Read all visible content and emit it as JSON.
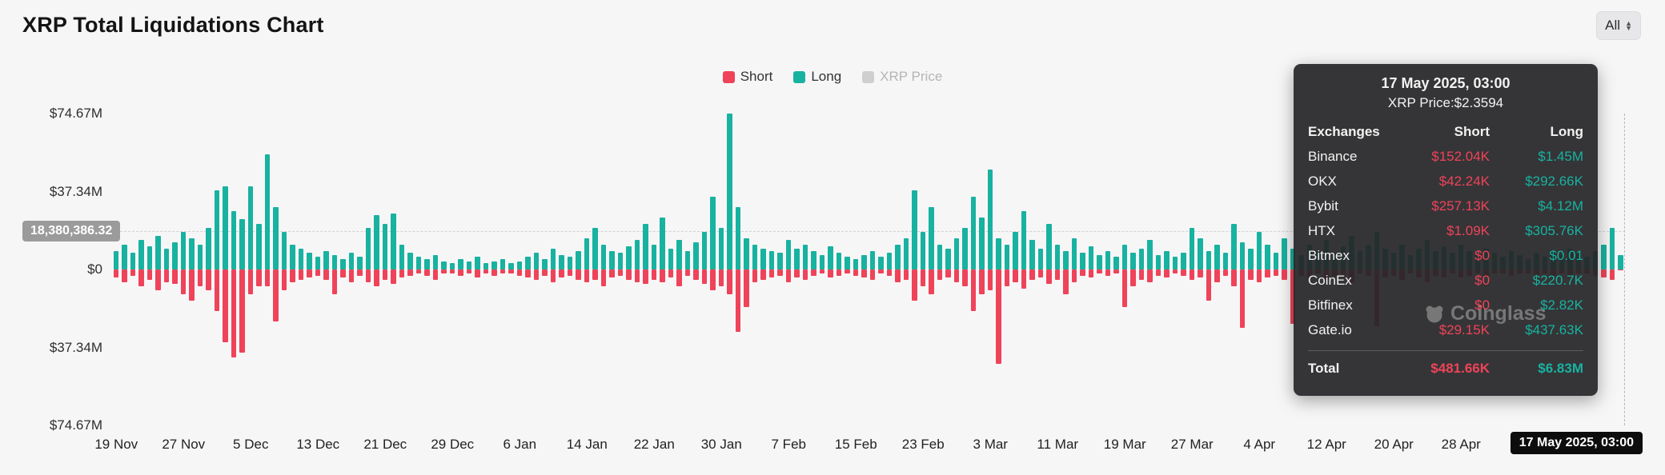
{
  "page": {
    "title": "XRP Total Liquidations Chart"
  },
  "controls": {
    "range_selector_label": "All"
  },
  "legend": [
    {
      "label": "Short",
      "color": "#ef4359",
      "active": true
    },
    {
      "label": "Long",
      "color": "#18b2a0",
      "active": true
    },
    {
      "label": "XRP Price",
      "color": "#cfcfcf",
      "active": false,
      "text_color": "#b5b5b5"
    }
  ],
  "axis": {
    "y_labels": [
      "$74.67M",
      "$37.34M",
      "$0",
      "$37.34M",
      "$74.67M"
    ],
    "crosshair_value": "18,380,386.32"
  },
  "tooltip": {
    "date": "17 May 2025, 03:00",
    "price_line": "XRP Price:$2.3594",
    "header": {
      "exchanges": "Exchanges",
      "short": "Short",
      "long": "Long"
    },
    "rows": [
      {
        "exchange": "Binance",
        "short": "$152.04K",
        "long": "$1.45M"
      },
      {
        "exchange": "OKX",
        "short": "$42.24K",
        "long": "$292.66K"
      },
      {
        "exchange": "Bybit",
        "short": "$257.13K",
        "long": "$4.12M"
      },
      {
        "exchange": "HTX",
        "short": "$1.09K",
        "long": "$305.76K"
      },
      {
        "exchange": "Bitmex",
        "short": "$0",
        "long": "$0.01"
      },
      {
        "exchange": "CoinEx",
        "short": "$0",
        "long": "$220.7K"
      },
      {
        "exchange": "Bitfinex",
        "short": "$0",
        "long": "$2.82K"
      },
      {
        "exchange": "Gate.io",
        "short": "$29.15K",
        "long": "$437.63K"
      }
    ],
    "total": {
      "label": "Total",
      "short": "$481.66K",
      "long": "$6.83M"
    }
  },
  "hover_date_badge": "17 May 2025, 03:00",
  "watermark": "Coinglass",
  "chart_data": {
    "type": "bar",
    "title": "XRP Total Liquidations Chart",
    "units": "USD millions",
    "x_start": "2024-11-19",
    "x_end": "2025-05-17",
    "interval": "daily",
    "ylim": [
      -74.67,
      74.67
    ],
    "grid": false,
    "legend_position": "top-center",
    "x_tick_every": 8,
    "x_tick_labels": [
      "19 Nov",
      "27 Nov",
      "5 Dec",
      "13 Dec",
      "21 Dec",
      "29 Dec",
      "6 Jan",
      "14 Jan",
      "22 Jan",
      "30 Jan",
      "7 Feb",
      "15 Feb",
      "23 Feb",
      "3 Mar",
      "11 Mar",
      "19 Mar",
      "27 Mar",
      "4 Apr",
      "12 Apr",
      "20 Apr",
      "28 Apr"
    ],
    "series": [
      {
        "name": "Long",
        "color": "#18b2a0",
        "values": [
          9,
          12,
          8,
          14,
          11,
          16,
          10,
          13,
          18,
          15,
          12,
          20,
          38,
          40,
          28,
          24,
          40,
          22,
          55,
          30,
          18,
          12,
          10,
          8,
          6,
          9,
          7,
          5,
          8,
          6,
          20,
          26,
          22,
          27,
          12,
          8,
          6,
          5,
          7,
          4,
          3,
          5,
          4,
          6,
          3,
          4,
          5,
          3,
          4,
          6,
          8,
          5,
          10,
          7,
          6,
          9,
          15,
          20,
          12,
          9,
          8,
          11,
          14,
          22,
          12,
          25,
          10,
          14,
          9,
          13,
          18,
          35,
          20,
          74.7,
          30,
          15,
          12,
          10,
          9,
          8,
          14,
          10,
          12,
          9,
          7,
          11,
          8,
          6,
          5,
          7,
          9,
          6,
          8,
          12,
          15,
          38,
          18,
          30,
          12,
          10,
          15,
          20,
          35,
          25,
          48,
          15,
          12,
          18,
          28,
          14,
          10,
          22,
          12,
          9,
          15,
          8,
          11,
          7,
          9,
          6,
          12,
          8,
          10,
          14,
          7,
          9,
          6,
          8,
          20,
          15,
          9,
          12,
          8,
          22,
          13,
          10,
          18,
          12,
          8,
          15,
          10,
          7,
          12,
          9,
          14,
          8,
          11,
          16,
          9,
          12,
          18,
          10,
          8,
          12,
          7,
          10,
          14,
          9,
          11,
          8,
          12,
          9,
          7,
          10,
          8,
          6,
          9,
          7,
          5,
          8,
          6,
          9,
          7,
          10,
          8,
          6,
          9,
          12,
          20,
          6.8
        ]
      },
      {
        "name": "Short",
        "color": "#ef4359",
        "values": [
          -4,
          -6,
          -3,
          -8,
          -5,
          -10,
          -6,
          -7,
          -12,
          -15,
          -8,
          -10,
          -20,
          -35,
          -42,
          -40,
          -12,
          -8,
          -8,
          -25,
          -10,
          -6,
          -5,
          -4,
          -3,
          -5,
          -12,
          -4,
          -6,
          -3,
          -6,
          -8,
          -5,
          -7,
          -4,
          -3,
          -2,
          -3,
          -5,
          -2,
          -2,
          -3,
          -2,
          -4,
          -2,
          -3,
          -2,
          -2,
          -3,
          -4,
          -5,
          -3,
          -6,
          -4,
          -3,
          -5,
          -6,
          -5,
          -8,
          -4,
          -3,
          -5,
          -6,
          -7,
          -5,
          -6,
          -4,
          -8,
          -3,
          -5,
          -7,
          -10,
          -8,
          -12,
          -30,
          -18,
          -6,
          -5,
          -4,
          -3,
          -6,
          -4,
          -5,
          -3,
          -2,
          -4,
          -3,
          -2,
          -3,
          -4,
          -5,
          -2,
          -3,
          -6,
          -5,
          -15,
          -8,
          -12,
          -5,
          -4,
          -6,
          -8,
          -20,
          -12,
          -10,
          -45,
          -8,
          -6,
          -9,
          -5,
          -4,
          -7,
          -5,
          -12,
          -6,
          -3,
          -4,
          -2,
          -3,
          -2,
          -18,
          -8,
          -5,
          -6,
          -3,
          -4,
          -2,
          -3,
          -5,
          -4,
          -15,
          -6,
          -3,
          -8,
          -28,
          -5,
          -6,
          -4,
          -3,
          -5,
          -26,
          -3,
          -4,
          -2,
          -5,
          -3,
          -4,
          -6,
          -2,
          -3,
          -27,
          -4,
          -3,
          -5,
          -2,
          -4,
          -6,
          -3,
          -4,
          -2,
          -4,
          -3,
          -2,
          -3,
          -2,
          -2,
          -3,
          -2,
          -2,
          -3,
          -2,
          -3,
          -2,
          -3,
          -2,
          -2,
          -3,
          -4,
          -5,
          -0.48
        ]
      }
    ]
  }
}
